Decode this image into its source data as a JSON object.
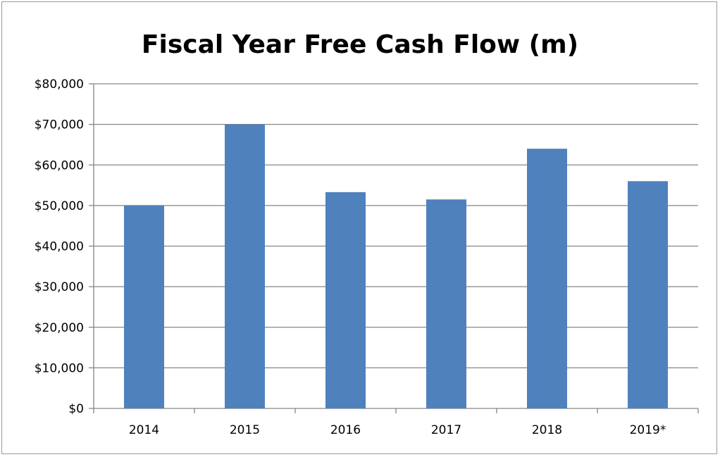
{
  "chart_data": {
    "type": "bar",
    "title": "Fiscal Year Free Cash Flow (m)",
    "xlabel": "",
    "ylabel": "",
    "categories": [
      "2014",
      "2015",
      "2016",
      "2017",
      "2018",
      "2019*"
    ],
    "values": [
      50000,
      70000,
      53300,
      51500,
      64000,
      56000
    ],
    "ylim": [
      0,
      80000
    ],
    "yticks": [
      0,
      10000,
      20000,
      30000,
      40000,
      50000,
      60000,
      70000,
      80000
    ],
    "ytick_labels": [
      "$0",
      "$10,000",
      "$20,000",
      "$30,000",
      "$40,000",
      "$50,000",
      "$60,000",
      "$70,000",
      "$80,000"
    ],
    "grid": true,
    "legend": "none",
    "bar_color": "#4f81bd",
    "gridline_color": "#868686"
  }
}
